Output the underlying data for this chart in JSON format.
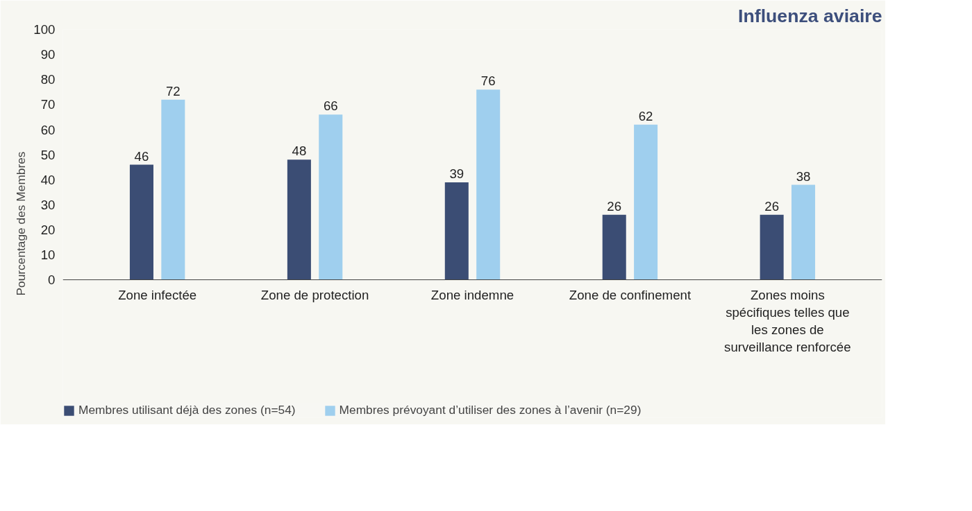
{
  "chart_data": {
    "type": "bar",
    "title": "Influenza aviaire",
    "ylabel": "Pourcentage des Membres",
    "categories": [
      "Zone infectée",
      "Zone de protection",
      "Zone indemne",
      "Zone de confinement",
      "Zones moins spécifiques telles que les zones de surveillance renforcée"
    ],
    "series": [
      {
        "name": "Membres utilisant déjà des zones (n=54)",
        "color": "#3b4d74",
        "values": [
          46,
          48,
          39,
          26,
          26
        ]
      },
      {
        "name": "Membres prévoyant d’utiliser des zones à l’avenir (n=29)",
        "color": "#9fcfee",
        "values": [
          72,
          66,
          76,
          62,
          38
        ]
      }
    ],
    "ylim": [
      0,
      100
    ],
    "yticks": [
      0,
      10,
      20,
      30,
      40,
      50,
      60,
      70,
      80,
      90,
      100
    ],
    "grid": false,
    "legend": "bottom",
    "data_labels": true
  }
}
